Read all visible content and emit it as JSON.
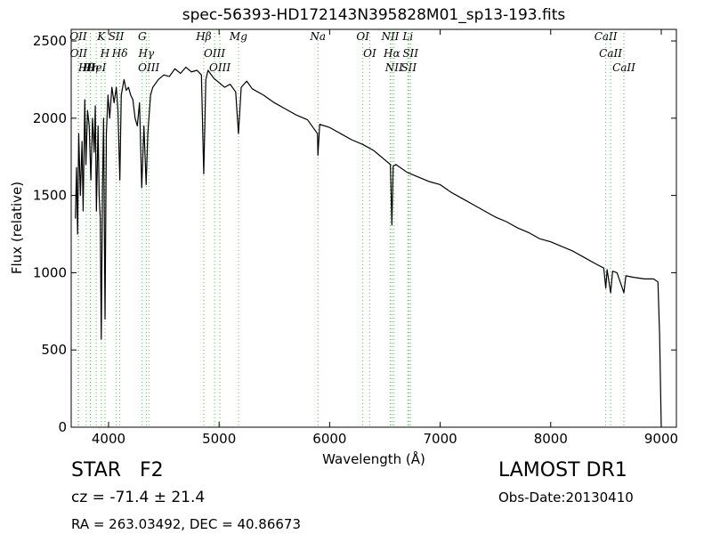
{
  "chart_data": {
    "type": "line",
    "title": "spec-56393-HD172143N395828M01_sp13-193.fits",
    "x_label": "Wavelength (Å)",
    "y_label": "Flux (relative)",
    "color": "#000000",
    "line_color": "#55bb55",
    "xlim": [
      3662,
      9137
    ],
    "ylim": [
      0,
      2575
    ],
    "xticks": [
      4000,
      5000,
      6000,
      7000,
      8000,
      9000
    ],
    "yticks": [
      0,
      500,
      1000,
      1500,
      2000,
      2500
    ],
    "grid": false,
    "x": [
      3700,
      3710,
      3720,
      3730,
      3745,
      3760,
      3770,
      3785,
      3795,
      3810,
      3825,
      3840,
      3855,
      3870,
      3880,
      3890,
      3905,
      3915,
      3925,
      3934,
      3945,
      3955,
      3968,
      3980,
      3995,
      4010,
      4030,
      4050,
      4070,
      4085,
      4102,
      4115,
      4140,
      4160,
      4180,
      4200,
      4220,
      4240,
      4260,
      4280,
      4300,
      4320,
      4340,
      4355,
      4380,
      4400,
      4450,
      4500,
      4550,
      4600,
      4650,
      4700,
      4750,
      4800,
      4840,
      4861,
      4880,
      4900,
      4950,
      5000,
      5050,
      5100,
      5150,
      5175,
      5200,
      5250,
      5300,
      5400,
      5500,
      5600,
      5700,
      5800,
      5890,
      5894,
      5910,
      6000,
      6100,
      6200,
      6300,
      6400,
      6500,
      6550,
      6563,
      6575,
      6600,
      6700,
      6800,
      6900,
      7000,
      7100,
      7200,
      7300,
      7400,
      7500,
      7600,
      7700,
      7800,
      7900,
      8000,
      8100,
      8200,
      8300,
      8400,
      8480,
      8498,
      8510,
      8542,
      8560,
      8600,
      8662,
      8680,
      8750,
      8850,
      8930,
      8970,
      8985,
      9000
    ],
    "values": [
      1350,
      1680,
      1250,
      1900,
      1500,
      1850,
      1400,
      2120,
      1700,
      2050,
      1950,
      1600,
      2000,
      1780,
      2080,
      1400,
      1950,
      1500,
      1350,
      570,
      1550,
      2000,
      700,
      1900,
      2150,
      2000,
      2200,
      2100,
      2200,
      2050,
      1600,
      2150,
      2250,
      2180,
      2200,
      2150,
      2120,
      2000,
      1950,
      2100,
      1550,
      1950,
      1570,
      1900,
      2150,
      2200,
      2250,
      2280,
      2270,
      2320,
      2290,
      2330,
      2300,
      2310,
      2280,
      1640,
      2250,
      2310,
      2260,
      2230,
      2200,
      2220,
      2170,
      1900,
      2200,
      2240,
      2190,
      2150,
      2100,
      2060,
      2020,
      1990,
      1900,
      1760,
      1960,
      1940,
      1900,
      1860,
      1830,
      1790,
      1730,
      1700,
      1310,
      1690,
      1700,
      1650,
      1620,
      1590,
      1570,
      1520,
      1480,
      1440,
      1400,
      1360,
      1330,
      1290,
      1260,
      1220,
      1200,
      1170,
      1140,
      1100,
      1060,
      1030,
      900,
      1020,
      870,
      1010,
      1000,
      870,
      980,
      970,
      960,
      960,
      940,
      600,
      0
    ],
    "lines": [
      {
        "label": "OII",
        "x": 3726
      },
      {
        "label": "OII",
        "x": 3729
      },
      {
        "label": "Hθ",
        "x": 3798
      },
      {
        "label": "Hη",
        "x": 3836
      },
      {
        "label": "HeI",
        "x": 3889
      },
      {
        "label": "K",
        "x": 3934
      },
      {
        "label": "H",
        "x": 3968
      },
      {
        "label": "SII",
        "x": 4069
      },
      {
        "label": "Hδ",
        "x": 4102
      },
      {
        "label": "G",
        "x": 4304
      },
      {
        "label": "Hγ",
        "x": 4341
      },
      {
        "label": "OIII",
        "x": 4364
      },
      {
        "label": "Hβ",
        "x": 4861
      },
      {
        "label": "OIII",
        "x": 4959
      },
      {
        "label": "OIII",
        "x": 5007
      },
      {
        "label": "Mg",
        "x": 5175
      },
      {
        "label": "Na",
        "x": 5894
      },
      {
        "label": "OI",
        "x": 6300
      },
      {
        "label": "OI",
        "x": 6363
      },
      {
        "label": "NII",
        "x": 6548
      },
      {
        "label": "Hα",
        "x": 6563
      },
      {
        "label": "NII",
        "x": 6583
      },
      {
        "label": "Li",
        "x": 6708
      },
      {
        "label": "SII",
        "x": 6716
      },
      {
        "label": "SII",
        "x": 6731
      },
      {
        "label": "CaII",
        "x": 8498
      },
      {
        "label": "CaII",
        "x": 8542
      },
      {
        "label": "CaII",
        "x": 8662
      }
    ]
  },
  "info": {
    "class": "STAR",
    "subclass": "F2",
    "cz": "cz = -71.4 ± 21.4",
    "coords": "RA = 263.03492, DEC = 40.86673",
    "survey": "LAMOST DR1",
    "obs_date": "Obs-Date:20130410"
  }
}
